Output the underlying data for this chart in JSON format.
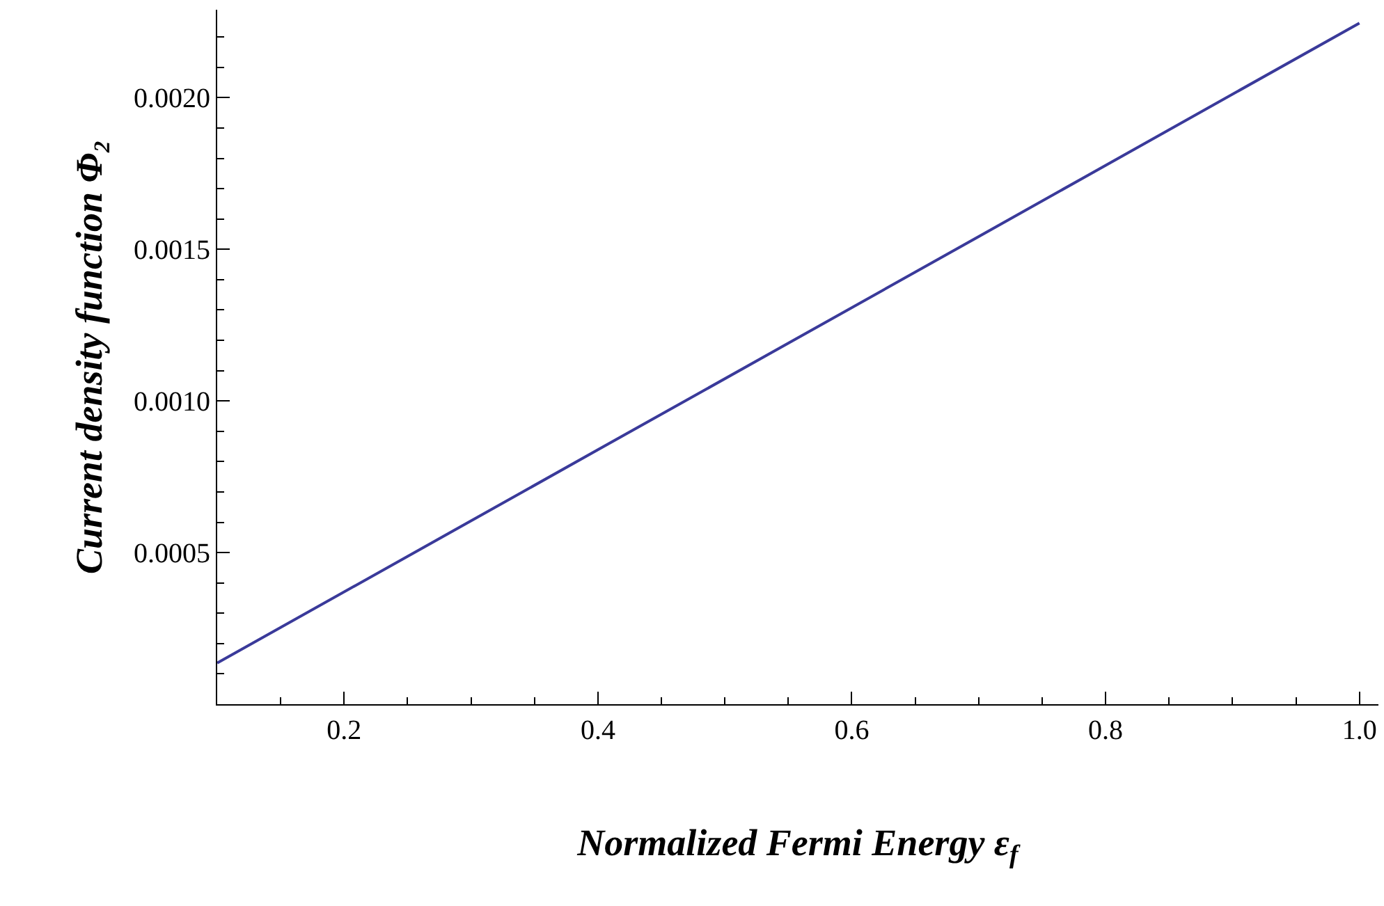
{
  "chart_data": {
    "type": "line",
    "xlabel": "Normalized Fermi Energy ε$_{f}$",
    "ylabel": "Current density function Φ₂",
    "x": [
      0.1,
      0.4,
      0.7,
      1.0
    ],
    "series": [
      {
        "color": "#3a3a9a",
        "values": [
          0.000136,
          0.000839,
          0.001542,
          0.002246
        ]
      }
    ],
    "xlim": [
      0.1,
      1.015
    ],
    "ylim": [
      0,
      0.00229
    ],
    "xticks": [
      {
        "value": 0.15,
        "label": null
      },
      0.2,
      {
        "value": 0.25,
        "label": null
      },
      {
        "value": 0.3,
        "label": null
      },
      {
        "value": 0.35,
        "label": null
      },
      0.4,
      {
        "value": 0.45,
        "label": null
      },
      {
        "value": 0.5,
        "label": null
      },
      {
        "value": 0.55,
        "label": null
      },
      0.6,
      {
        "value": 0.65,
        "label": null
      },
      {
        "value": 0.7,
        "label": null
      },
      {
        "value": 0.75,
        "label": null
      },
      0.8,
      {
        "value": 0.85,
        "label": null
      },
      {
        "value": 0.9,
        "label": null
      },
      {
        "value": 0.95,
        "label": null
      },
      {
        "value": 1.0,
        "label": "1.0"
      }
    ],
    "yticks": [
      {
        "value": 0.0001,
        "label": null
      },
      {
        "value": 0.0002,
        "label": null
      },
      {
        "value": 0.0003,
        "label": null
      },
      {
        "value": 0.0004,
        "label": null
      },
      {
        "value": 0.0005,
        "label": "0.0005"
      },
      {
        "value": 0.0006,
        "label": null
      },
      {
        "value": 0.0007,
        "label": null
      },
      {
        "value": 0.0008,
        "label": null
      },
      {
        "value": 0.0009,
        "label": null
      },
      {
        "value": 0.001,
        "label": "0.0010"
      },
      {
        "value": 0.0011,
        "label": null
      },
      {
        "value": 0.0012,
        "label": null
      },
      {
        "value": 0.0013,
        "label": null
      },
      {
        "value": 0.0014,
        "label": null
      },
      {
        "value": 0.0015,
        "label": "0.0015"
      },
      {
        "value": 0.0016,
        "label": null
      },
      {
        "value": 0.0017,
        "label": null
      },
      {
        "value": 0.0018,
        "label": null
      },
      {
        "value": 0.0019,
        "label": null
      },
      {
        "value": 0.002,
        "label": "0.0020"
      },
      {
        "value": 0.0021,
        "label": null
      },
      {
        "value": 0.0022,
        "label": null
      }
    ],
    "grid": false,
    "marker": "none",
    "line_style": "solid"
  }
}
